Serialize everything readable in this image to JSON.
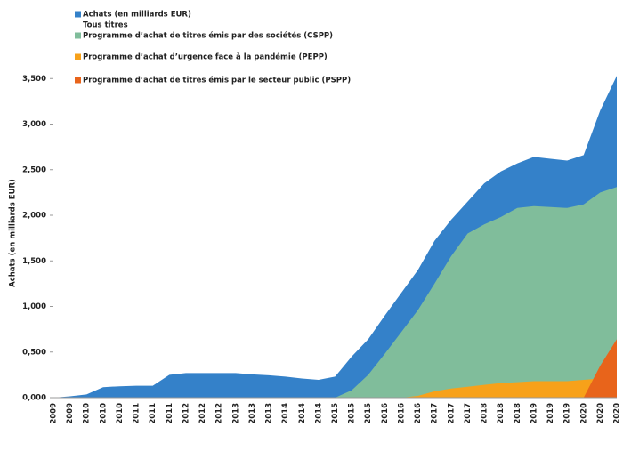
{
  "chart_data": {
    "type": "area",
    "legend_title": "Achats (en milliards EUR)",
    "y_label": "Achats (en milliards EUR)",
    "categories": [
      "2009",
      "2009",
      "2010",
      "2010",
      "2010",
      "2011",
      "2011",
      "2011",
      "2012",
      "2012",
      "2012",
      "2013",
      "2013",
      "2013",
      "2014",
      "2014",
      "2014",
      "2015",
      "2015",
      "2015",
      "2016",
      "2016",
      "2016",
      "2017",
      "2017",
      "2017",
      "2018",
      "2018",
      "2018",
      "2019",
      "2019",
      "2019",
      "2020",
      "2020",
      "2020"
    ],
    "series": [
      {
        "name": "Tous titres",
        "color": "#3481c9",
        "values": [
          0,
          15,
          35,
          115,
          125,
          130,
          130,
          250,
          270,
          270,
          270,
          270,
          255,
          245,
          230,
          210,
          195,
          230,
          450,
          640,
          900,
          1150,
          1400,
          1720,
          1950,
          2150,
          2350,
          2480,
          2570,
          2640,
          2620,
          2600,
          2660,
          3150,
          3530
        ]
      },
      {
        "name": "Programme d’achat de titres émis par des sociétés (CSPP)",
        "color": "#80bd9b",
        "values": [
          null,
          null,
          null,
          null,
          null,
          null,
          null,
          null,
          null,
          null,
          null,
          null,
          null,
          null,
          null,
          null,
          null,
          0,
          80,
          250,
          480,
          720,
          960,
          1250,
          1550,
          1800,
          1900,
          1980,
          2080,
          2100,
          2090,
          2080,
          2120,
          2250,
          2310
        ]
      },
      {
        "name": "Programme d’achat d’urgence face à la pandémie (PEPP)",
        "color": "#f7a11a",
        "values": [
          null,
          null,
          null,
          null,
          null,
          null,
          null,
          null,
          null,
          null,
          null,
          null,
          null,
          null,
          null,
          null,
          null,
          null,
          null,
          null,
          null,
          0,
          20,
          70,
          100,
          120,
          140,
          160,
          170,
          180,
          180,
          180,
          195,
          210,
          230
        ]
      },
      {
        "name": "Programme d’achat de titres émis par le secteur public (PSPP)",
        "color": "#e8641b",
        "values": [
          null,
          null,
          null,
          null,
          null,
          null,
          null,
          null,
          null,
          null,
          null,
          null,
          null,
          null,
          null,
          null,
          null,
          null,
          null,
          null,
          null,
          null,
          null,
          null,
          null,
          null,
          null,
          null,
          null,
          null,
          null,
          null,
          0,
          350,
          640
        ]
      }
    ],
    "ylim": [
      0,
      3600
    ],
    "yticks": [
      {
        "value": 0,
        "label": "0,000"
      },
      {
        "value": 500,
        "label": "0,500"
      },
      {
        "value": 1000,
        "label": "1,000"
      },
      {
        "value": 1500,
        "label": "1,500"
      },
      {
        "value": 2000,
        "label": "2,000"
      },
      {
        "value": 2500,
        "label": "2,500"
      },
      {
        "value": 3000,
        "label": "3,000"
      },
      {
        "value": 3500,
        "label": "3,500"
      }
    ]
  }
}
